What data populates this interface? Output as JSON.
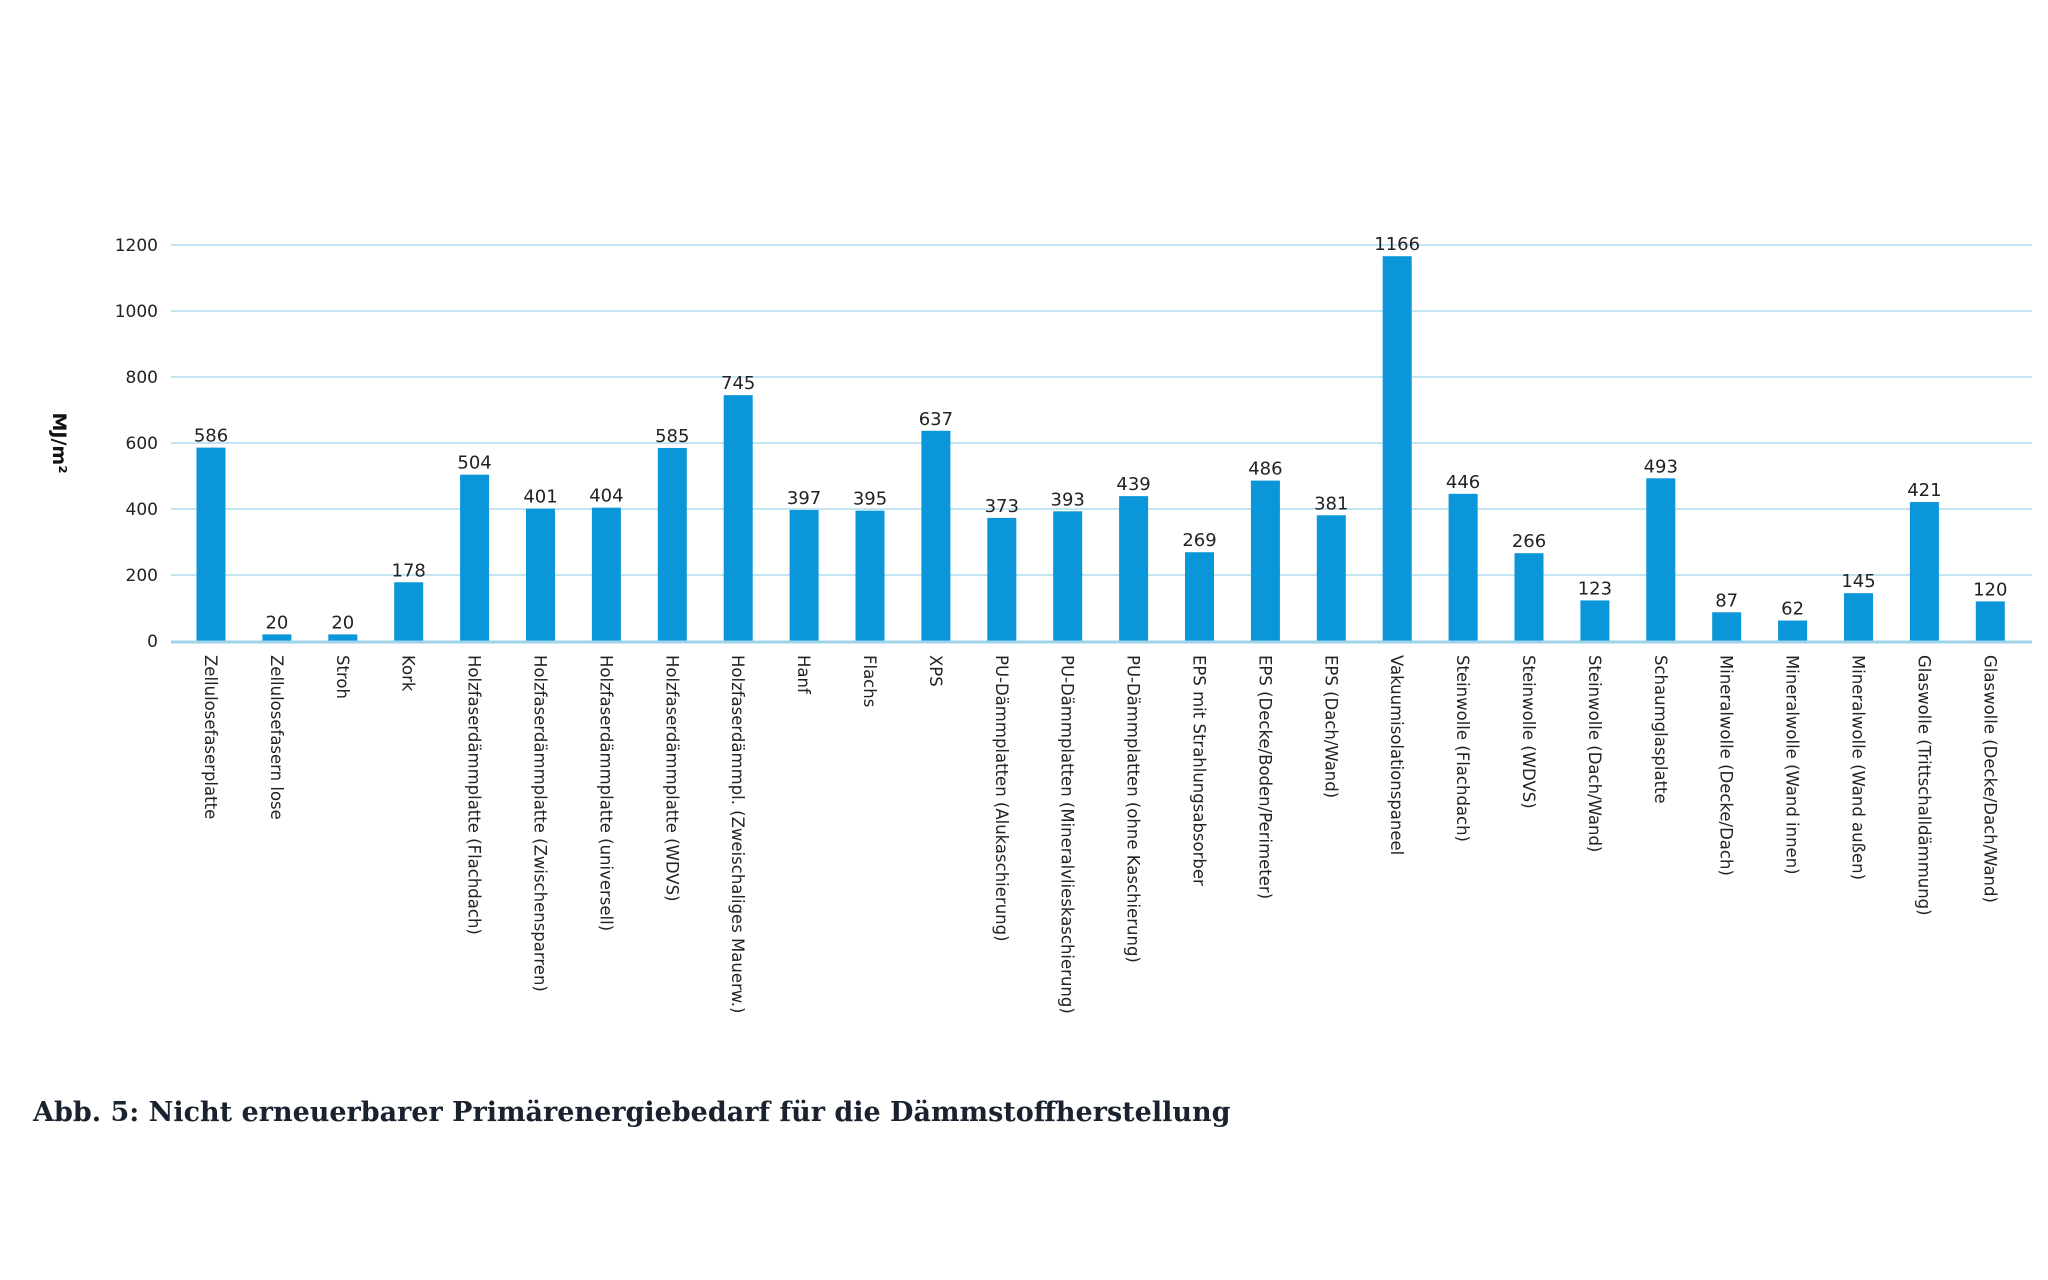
{
  "caption": "Abb. 5: Nicht erneuerbarer Primärenergiebedarf für die Dämmstoffherstellung",
  "chart_data": {
    "type": "bar",
    "title": "",
    "xlabel": "",
    "ylabel": "MJ/m²",
    "ylim": [
      0,
      1200
    ],
    "yticks": [
      0,
      200,
      400,
      600,
      800,
      1000,
      1200
    ],
    "grid": true,
    "bar_color": "#0a96d8",
    "grid_color": "#9fd3ea",
    "categories": [
      "Zellulosefaserplatte",
      "Zellulosefasern lose",
      "Stroh",
      "Kork",
      "Holzfaserdämmplatte (Flachdach)",
      "Holzfaserdämmplatte (Zwischensparren)",
      "Holzfaserdämmplatte (universell)",
      "Holzfaserdämmplatte (WDVS)",
      "Holzfaserdämmpl. (Zweischaliges Mauerw.)",
      "Hanf",
      "Flachs",
      "XPS",
      "PU-Dämmplatten (Alukaschierung)",
      "PU-Dämmplatten (Mineralvlieskaschierung)",
      "PU-Dämmplatten (ohne Kaschierung)",
      "EPS mit Strahlungsabsorber",
      "EPS (Decke/Boden/Perimeter)",
      "EPS (Dach/Wand)",
      "Vakuumisolationspaneel",
      "Steinwolle (Flachdach)",
      "Steinwolle (WDVS)",
      "Steinwolle (Dach/Wand)",
      "Schaumglasplatte",
      "Mineralwolle (Decke/Dach)",
      "Mineralwolle (Wand innen)",
      "Mineralwolle (Wand außen)",
      "Glaswolle (Trittschalldämmung)",
      "Glaswolle (Decke/Dach/Wand)"
    ],
    "values": [
      586,
      20,
      20,
      178,
      504,
      401,
      404,
      585,
      745,
      397,
      395,
      637,
      373,
      393,
      439,
      269,
      486,
      381,
      1166,
      446,
      266,
      123,
      493,
      87,
      62,
      145,
      421,
      120
    ]
  }
}
